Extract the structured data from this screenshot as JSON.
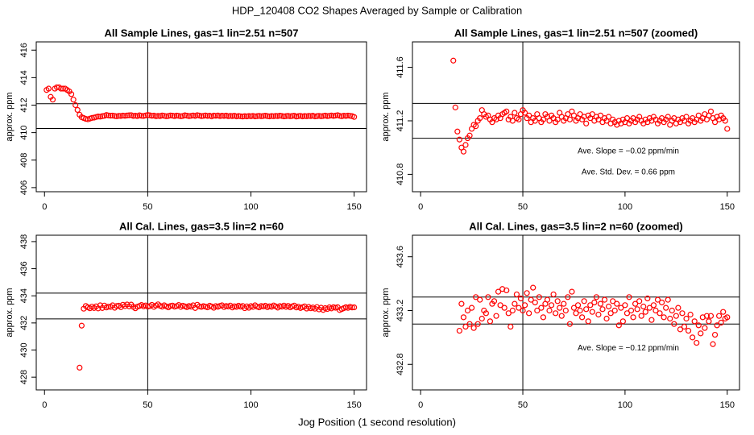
{
  "title": "HDP_120408  CO2 Shapes Averaged by Sample or Calibration",
  "xlabel": "Jog Position (1 second resolution)",
  "chart_data": [
    {
      "type": "scatter",
      "title": "All Sample Lines, gas=1 lin=2.51 n=507",
      "ylabel": "approx. ppm",
      "color": "#ff0000",
      "xlim": [
        -4,
        156
      ],
      "ylim": [
        405.7,
        416.6
      ],
      "xticks": [
        0,
        50,
        100,
        150
      ],
      "yticks": [
        406,
        408,
        410,
        412,
        414,
        416
      ],
      "hlines": [
        412.1,
        410.3
      ],
      "vlines": [
        50
      ],
      "x": [
        1,
        2,
        3,
        4,
        5,
        6,
        7,
        8,
        9,
        10,
        11,
        12,
        13,
        14,
        15,
        16,
        17,
        18,
        19,
        20,
        21,
        22,
        23,
        24,
        25,
        26,
        27,
        28,
        29,
        30,
        31,
        32,
        33,
        34,
        35,
        36,
        37,
        38,
        39,
        40,
        41,
        42,
        43,
        44,
        45,
        46,
        47,
        48,
        49,
        50,
        51,
        52,
        53,
        54,
        55,
        56,
        57,
        58,
        59,
        60,
        61,
        62,
        63,
        64,
        65,
        66,
        67,
        68,
        69,
        70,
        71,
        72,
        73,
        74,
        75,
        76,
        77,
        78,
        79,
        80,
        81,
        82,
        83,
        84,
        85,
        86,
        87,
        88,
        89,
        90,
        91,
        92,
        93,
        94,
        95,
        96,
        97,
        98,
        99,
        100,
        101,
        102,
        103,
        104,
        105,
        106,
        107,
        108,
        109,
        110,
        111,
        112,
        113,
        114,
        115,
        116,
        117,
        118,
        119,
        120,
        121,
        122,
        123,
        124,
        125,
        126,
        127,
        128,
        129,
        130,
        131,
        132,
        133,
        134,
        135,
        136,
        137,
        138,
        139,
        140,
        141,
        142,
        143,
        144,
        145,
        146,
        147,
        148,
        149,
        150
      ],
      "y": [
        413.1,
        413.2,
        412.6,
        412.4,
        413.2,
        413.3,
        413.3,
        413.2,
        413.2,
        413.2,
        413.1,
        413.0,
        412.8,
        412.4,
        412.0,
        411.65,
        411.3,
        411.12,
        411.06,
        411.0,
        410.97,
        411.02,
        411.07,
        411.09,
        411.14,
        411.17,
        411.16,
        411.2,
        411.22,
        411.28,
        411.25,
        411.23,
        411.24,
        411.21,
        411.19,
        411.22,
        411.21,
        411.24,
        411.22,
        411.25,
        411.26,
        411.27,
        411.21,
        411.23,
        411.2,
        411.26,
        411.22,
        411.21,
        411.25,
        411.28,
        411.26,
        411.22,
        411.24,
        411.19,
        411.22,
        411.2,
        411.25,
        411.22,
        411.19,
        411.21,
        411.25,
        411.23,
        411.2,
        411.24,
        411.22,
        411.19,
        411.21,
        411.26,
        411.23,
        411.2,
        411.22,
        411.25,
        411.21,
        411.27,
        411.24,
        411.2,
        411.22,
        411.25,
        411.21,
        411.23,
        411.18,
        411.24,
        411.22,
        411.25,
        411.2,
        411.23,
        411.21,
        411.24,
        411.19,
        411.22,
        411.2,
        411.23,
        411.18,
        411.21,
        411.19,
        411.17,
        411.2,
        411.18,
        411.21,
        411.19,
        411.22,
        411.18,
        411.2,
        411.22,
        411.19,
        411.21,
        411.23,
        411.2,
        411.18,
        411.21,
        411.19,
        411.22,
        411.2,
        411.23,
        411.21,
        411.18,
        411.2,
        411.22,
        411.19,
        411.21,
        411.23,
        411.17,
        411.2,
        411.22,
        411.18,
        411.21,
        411.19,
        411.22,
        411.2,
        411.23,
        411.18,
        411.2,
        411.22,
        411.19,
        411.21,
        411.24,
        411.2,
        411.22,
        411.25,
        411.21,
        411.24,
        411.27,
        411.22,
        411.19,
        411.23,
        411.21,
        411.24,
        411.22,
        411.2,
        411.14
      ]
    },
    {
      "type": "scatter",
      "title": "All Sample Lines, gas=1 lin=2.51 n=507 (zoomed)",
      "ylabel": "approx. ppm",
      "color": "#ff0000",
      "xlim": [
        -4,
        156
      ],
      "ylim": [
        410.67,
        411.79
      ],
      "xticks": [
        0,
        50,
        100,
        150
      ],
      "yticks": [
        410.8,
        411.2,
        411.6
      ],
      "hlines": [
        411.33,
        411.07
      ],
      "vlines": [
        50
      ],
      "annotations": [
        "Ave. Slope =  −0.02  ppm/min",
        "Ave. Std. Dev. =  0.66  ppm"
      ],
      "x": [
        16,
        17,
        18,
        19,
        20,
        21,
        22,
        23,
        24,
        25,
        26,
        27,
        28,
        29,
        30,
        31,
        32,
        33,
        34,
        35,
        36,
        37,
        38,
        39,
        40,
        41,
        42,
        43,
        44,
        45,
        46,
        47,
        48,
        49,
        50,
        51,
        52,
        53,
        54,
        55,
        56,
        57,
        58,
        59,
        60,
        61,
        62,
        63,
        64,
        65,
        66,
        67,
        68,
        69,
        70,
        71,
        72,
        73,
        74,
        75,
        76,
        77,
        78,
        79,
        80,
        81,
        82,
        83,
        84,
        85,
        86,
        87,
        88,
        89,
        90,
        91,
        92,
        93,
        94,
        95,
        96,
        97,
        98,
        99,
        100,
        101,
        102,
        103,
        104,
        105,
        106,
        107,
        108,
        109,
        110,
        111,
        112,
        113,
        114,
        115,
        116,
        117,
        118,
        119,
        120,
        121,
        122,
        123,
        124,
        125,
        126,
        127,
        128,
        129,
        130,
        131,
        132,
        133,
        134,
        135,
        136,
        137,
        138,
        139,
        140,
        141,
        142,
        143,
        144,
        145,
        146,
        147,
        148,
        149,
        150
      ],
      "y": [
        411.65,
        411.3,
        411.12,
        411.06,
        411.0,
        410.97,
        411.02,
        411.07,
        411.09,
        411.14,
        411.17,
        411.16,
        411.2,
        411.22,
        411.28,
        411.25,
        411.23,
        411.24,
        411.21,
        411.19,
        411.22,
        411.21,
        411.24,
        411.22,
        411.25,
        411.26,
        411.27,
        411.21,
        411.23,
        411.2,
        411.26,
        411.22,
        411.21,
        411.25,
        411.28,
        411.26,
        411.22,
        411.24,
        411.19,
        411.22,
        411.2,
        411.25,
        411.22,
        411.19,
        411.21,
        411.25,
        411.23,
        411.2,
        411.24,
        411.22,
        411.19,
        411.21,
        411.26,
        411.23,
        411.2,
        411.22,
        411.25,
        411.21,
        411.27,
        411.24,
        411.2,
        411.22,
        411.25,
        411.21,
        411.23,
        411.18,
        411.24,
        411.22,
        411.25,
        411.2,
        411.23,
        411.21,
        411.24,
        411.19,
        411.22,
        411.2,
        411.23,
        411.18,
        411.21,
        411.19,
        411.17,
        411.2,
        411.18,
        411.21,
        411.19,
        411.22,
        411.18,
        411.2,
        411.22,
        411.19,
        411.21,
        411.23,
        411.2,
        411.18,
        411.21,
        411.19,
        411.22,
        411.2,
        411.23,
        411.21,
        411.18,
        411.2,
        411.22,
        411.19,
        411.21,
        411.23,
        411.17,
        411.2,
        411.22,
        411.18,
        411.21,
        411.19,
        411.22,
        411.2,
        411.23,
        411.18,
        411.2,
        411.22,
        411.19,
        411.21,
        411.24,
        411.2,
        411.22,
        411.25,
        411.21,
        411.24,
        411.27,
        411.22,
        411.19,
        411.23,
        411.21,
        411.24,
        411.22,
        411.2,
        411.14
      ]
    },
    {
      "type": "scatter",
      "title": "All Cal. Lines, gas=3.5 lin=2 n=60",
      "ylabel": "approx. ppm",
      "color": "#ff0000",
      "xlim": [
        -4,
        156
      ],
      "ylim": [
        427.06,
        438.47
      ],
      "xticks": [
        0,
        50,
        100,
        150
      ],
      "yticks": [
        428,
        430,
        432,
        434,
        436,
        438
      ],
      "hlines": [
        434.2,
        432.3
      ],
      "vlines": [
        50
      ],
      "x": [
        17,
        18,
        19,
        20,
        21,
        22,
        23,
        24,
        25,
        26,
        27,
        28,
        29,
        30,
        31,
        32,
        33,
        34,
        35,
        36,
        37,
        38,
        39,
        40,
        41,
        42,
        43,
        44,
        45,
        46,
        47,
        48,
        49,
        50,
        51,
        52,
        53,
        54,
        55,
        56,
        57,
        58,
        59,
        60,
        61,
        62,
        63,
        64,
        65,
        66,
        67,
        68,
        69,
        70,
        71,
        72,
        73,
        74,
        75,
        76,
        77,
        78,
        79,
        80,
        81,
        82,
        83,
        84,
        85,
        86,
        87,
        88,
        89,
        90,
        91,
        92,
        93,
        94,
        95,
        96,
        97,
        98,
        99,
        100,
        101,
        102,
        103,
        104,
        105,
        106,
        107,
        108,
        109,
        110,
        111,
        112,
        113,
        114,
        115,
        116,
        117,
        118,
        119,
        120,
        121,
        122,
        123,
        124,
        125,
        126,
        127,
        128,
        129,
        130,
        131,
        132,
        133,
        134,
        135,
        136,
        137,
        138,
        139,
        140,
        141,
        142,
        143,
        144,
        145,
        146,
        147,
        148,
        149,
        150
      ],
      "y": [
        428.7,
        431.8,
        433.05,
        433.25,
        433.15,
        433.08,
        433.2,
        433.1,
        433.22,
        433.07,
        433.3,
        433.1,
        433.28,
        433.14,
        433.2,
        433.18,
        433.3,
        433.12,
        433.25,
        433.27,
        433.16,
        433.34,
        433.24,
        433.36,
        433.22,
        433.35,
        433.18,
        433.08,
        433.2,
        433.25,
        433.32,
        433.22,
        433.29,
        433.2,
        433.24,
        433.33,
        433.18,
        433.28,
        433.37,
        433.26,
        433.2,
        433.3,
        433.22,
        433.15,
        433.25,
        433.28,
        433.2,
        433.24,
        433.32,
        433.18,
        433.27,
        433.22,
        433.16,
        433.25,
        433.2,
        433.3,
        433.1,
        433.34,
        433.22,
        433.18,
        433.24,
        433.2,
        433.15,
        433.27,
        433.21,
        433.12,
        433.24,
        433.19,
        433.26,
        433.3,
        433.17,
        433.25,
        433.21,
        433.28,
        433.14,
        433.23,
        433.18,
        433.27,
        433.2,
        433.25,
        433.09,
        433.22,
        433.12,
        433.24,
        433.18,
        433.3,
        433.2,
        433.15,
        433.25,
        433.21,
        433.27,
        433.16,
        433.23,
        433.19,
        433.29,
        433.22,
        433.13,
        433.24,
        433.2,
        433.28,
        433.18,
        433.26,
        433.15,
        433.22,
        433.28,
        433.14,
        433.2,
        433.1,
        433.16,
        433.22,
        433.06,
        433.18,
        433.08,
        433.14,
        433.05,
        433.17,
        433.0,
        433.12,
        432.96,
        433.09,
        433.03,
        433.15,
        433.07,
        433.16,
        433.12,
        433.16,
        432.95,
        433.02,
        433.09,
        433.16,
        433.11,
        433.19,
        433.14,
        433.15
      ]
    },
    {
      "type": "scatter",
      "title": "All Cal. Lines, gas=3.5 lin=2 n=60 (zoomed)",
      "ylabel": "approx. ppm",
      "color": "#ff0000",
      "xlim": [
        -4,
        156
      ],
      "ylim": [
        432.61,
        433.76
      ],
      "xticks": [
        0,
        50,
        100,
        150
      ],
      "yticks": [
        432.8,
        433.2,
        433.6
      ],
      "hlines": [
        433.3,
        433.1
      ],
      "vlines": [
        50
      ],
      "annotations": [
        "Ave. Slope =  −0.12  ppm/min"
      ],
      "x": [
        19,
        20,
        21,
        22,
        23,
        24,
        25,
        26,
        27,
        28,
        29,
        30,
        31,
        32,
        33,
        34,
        35,
        36,
        37,
        38,
        39,
        40,
        41,
        42,
        43,
        44,
        45,
        46,
        47,
        48,
        49,
        50,
        51,
        52,
        53,
        54,
        55,
        56,
        57,
        58,
        59,
        60,
        61,
        62,
        63,
        64,
        65,
        66,
        67,
        68,
        69,
        70,
        71,
        72,
        73,
        74,
        75,
        76,
        77,
        78,
        79,
        80,
        81,
        82,
        83,
        84,
        85,
        86,
        87,
        88,
        89,
        90,
        91,
        92,
        93,
        94,
        95,
        96,
        97,
        98,
        99,
        100,
        101,
        102,
        103,
        104,
        105,
        106,
        107,
        108,
        109,
        110,
        111,
        112,
        113,
        114,
        115,
        116,
        117,
        118,
        119,
        120,
        121,
        122,
        123,
        124,
        125,
        126,
        127,
        128,
        129,
        130,
        131,
        132,
        133,
        134,
        135,
        136,
        137,
        138,
        139,
        140,
        141,
        142,
        143,
        144,
        145,
        146,
        147,
        148,
        149,
        150
      ],
      "y": [
        433.05,
        433.25,
        433.15,
        433.08,
        433.2,
        433.1,
        433.22,
        433.07,
        433.3,
        433.1,
        433.28,
        433.14,
        433.2,
        433.18,
        433.3,
        433.12,
        433.25,
        433.27,
        433.16,
        433.34,
        433.24,
        433.36,
        433.22,
        433.35,
        433.18,
        433.08,
        433.2,
        433.25,
        433.32,
        433.22,
        433.29,
        433.2,
        433.24,
        433.33,
        433.18,
        433.28,
        433.37,
        433.26,
        433.2,
        433.3,
        433.22,
        433.15,
        433.25,
        433.28,
        433.2,
        433.24,
        433.32,
        433.18,
        433.27,
        433.22,
        433.16,
        433.25,
        433.2,
        433.3,
        433.1,
        433.34,
        433.22,
        433.18,
        433.24,
        433.2,
        433.15,
        433.27,
        433.21,
        433.12,
        433.24,
        433.19,
        433.26,
        433.3,
        433.17,
        433.25,
        433.21,
        433.28,
        433.14,
        433.23,
        433.18,
        433.27,
        433.2,
        433.25,
        433.09,
        433.22,
        433.12,
        433.24,
        433.18,
        433.3,
        433.2,
        433.15,
        433.25,
        433.21,
        433.27,
        433.16,
        433.23,
        433.19,
        433.29,
        433.22,
        433.13,
        433.24,
        433.2,
        433.28,
        433.18,
        433.26,
        433.15,
        433.22,
        433.28,
        433.14,
        433.2,
        433.1,
        433.16,
        433.22,
        433.06,
        433.18,
        433.08,
        433.14,
        433.05,
        433.17,
        433.0,
        433.12,
        432.96,
        433.09,
        433.03,
        433.15,
        433.07,
        433.16,
        433.12,
        433.16,
        432.95,
        433.02,
        433.09,
        433.16,
        433.11,
        433.19,
        433.14,
        433.15
      ]
    }
  ]
}
